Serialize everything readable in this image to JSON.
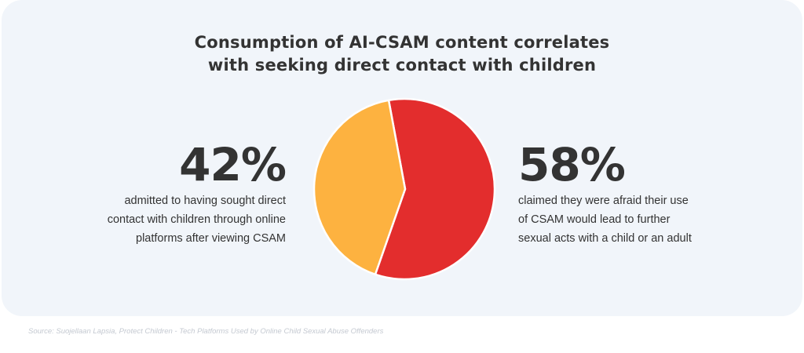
{
  "chart_data": {
    "type": "pie",
    "title": "Consumption of AI-CSAM content correlates with seeking direct contact with children",
    "title_lines": [
      "Consumption of AI-CSAM content correlates",
      "with seeking direct contact with children"
    ],
    "slices": [
      {
        "label": "42%",
        "value": 42,
        "color": "#fdb240",
        "description": "admitted to having sought direct contact with children through online platforms after viewing CSAM"
      },
      {
        "label": "58%",
        "value": 58,
        "color": "#e32d2d",
        "description": "claimed they were afraid their use of CSAM would lead to further sexual acts with a child or an adult"
      }
    ],
    "legend": "none"
  },
  "left": {
    "pct": "42%",
    "lines": [
      "admitted to having sought direct",
      "contact with children through online",
      "platforms after viewing CSAM"
    ]
  },
  "right": {
    "pct": "58%",
    "lines": [
      "claimed they were afraid their use",
      "of CSAM would lead to further",
      "sexual acts with a child or an adult"
    ]
  },
  "source": "Source: Suojellaan Lapsia, Protect Children - Tech Platforms Used by Online Child Sexual Abuse Offenders"
}
